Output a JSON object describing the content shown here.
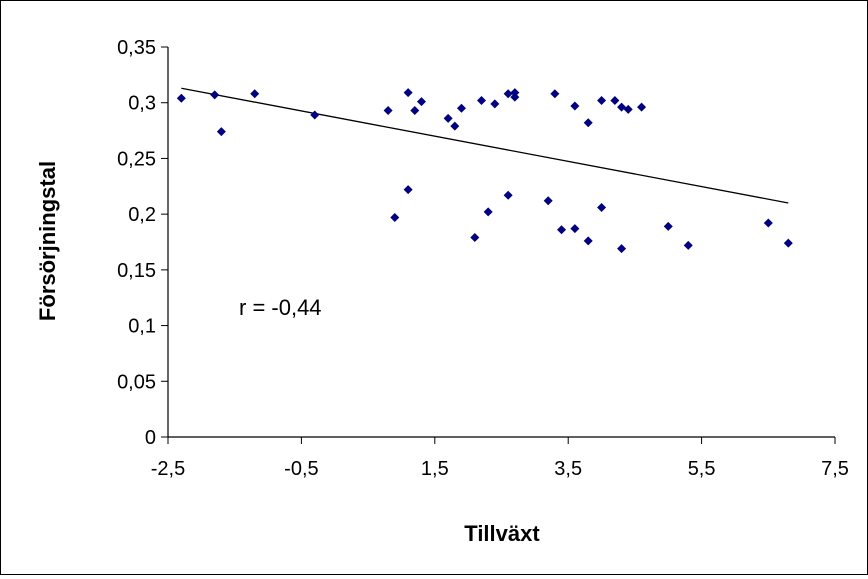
{
  "chart_data": {
    "type": "scatter",
    "title": "",
    "xlabel": "Tillväxt",
    "ylabel": "Försörjningstal",
    "xlim": [
      -2.5,
      7.5
    ],
    "ylim": [
      0,
      0.35
    ],
    "x_ticks": [
      -2.5,
      -0.5,
      1.5,
      3.5,
      5.5,
      7.5
    ],
    "x_tick_labels": [
      "-2,5",
      "-0,5",
      "1,5",
      "3,5",
      "5,5",
      "7,5"
    ],
    "y_ticks": [
      0,
      0.05,
      0.1,
      0.15,
      0.2,
      0.25,
      0.3,
      0.35
    ],
    "y_tick_labels": [
      "0",
      "0,05",
      "0,1",
      "0,15",
      "0,2",
      "0,25",
      "0,3",
      "0,35"
    ],
    "grid": false,
    "legend": "none",
    "annotation": "r = -0,44",
    "marker_color": "#000080",
    "trendline_color": "#000000",
    "trendline": {
      "x": [
        -2.3,
        6.8
      ],
      "y": [
        0.313,
        0.21
      ]
    },
    "series": [
      {
        "values": [
          {
            "x": -2.3,
            "y": 0.304
          },
          {
            "x": -1.8,
            "y": 0.307
          },
          {
            "x": -1.7,
            "y": 0.274
          },
          {
            "x": -1.2,
            "y": 0.308
          },
          {
            "x": -0.3,
            "y": 0.289
          },
          {
            "x": 0.8,
            "y": 0.293
          },
          {
            "x": 0.9,
            "y": 0.197
          },
          {
            "x": 1.1,
            "y": 0.222
          },
          {
            "x": 1.1,
            "y": 0.309
          },
          {
            "x": 1.2,
            "y": 0.293
          },
          {
            "x": 1.3,
            "y": 0.301
          },
          {
            "x": 1.7,
            "y": 0.286
          },
          {
            "x": 1.8,
            "y": 0.279
          },
          {
            "x": 1.9,
            "y": 0.295
          },
          {
            "x": 2.1,
            "y": 0.179
          },
          {
            "x": 2.2,
            "y": 0.302
          },
          {
            "x": 2.3,
            "y": 0.202
          },
          {
            "x": 2.4,
            "y": 0.299
          },
          {
            "x": 2.6,
            "y": 0.217
          },
          {
            "x": 2.6,
            "y": 0.308
          },
          {
            "x": 2.7,
            "y": 0.305
          },
          {
            "x": 2.7,
            "y": 0.309
          },
          {
            "x": 3.2,
            "y": 0.212
          },
          {
            "x": 3.3,
            "y": 0.308
          },
          {
            "x": 3.4,
            "y": 0.186
          },
          {
            "x": 3.6,
            "y": 0.187
          },
          {
            "x": 3.6,
            "y": 0.297
          },
          {
            "x": 3.8,
            "y": 0.176
          },
          {
            "x": 3.8,
            "y": 0.282
          },
          {
            "x": 4.0,
            "y": 0.206
          },
          {
            "x": 4.0,
            "y": 0.302
          },
          {
            "x": 4.2,
            "y": 0.302
          },
          {
            "x": 4.3,
            "y": 0.169
          },
          {
            "x": 4.3,
            "y": 0.296
          },
          {
            "x": 4.4,
            "y": 0.294
          },
          {
            "x": 4.6,
            "y": 0.296
          },
          {
            "x": 5.0,
            "y": 0.189
          },
          {
            "x": 5.3,
            "y": 0.172
          },
          {
            "x": 6.5,
            "y": 0.192
          },
          {
            "x": 6.8,
            "y": 0.174
          }
        ]
      }
    ]
  }
}
